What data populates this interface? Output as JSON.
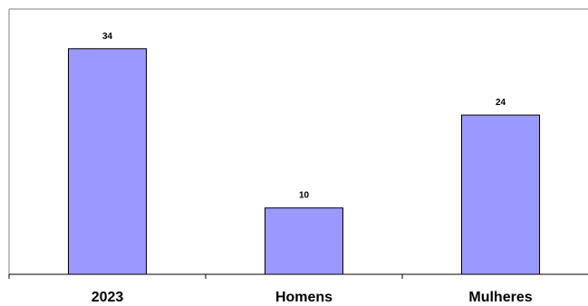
{
  "chart_data": {
    "type": "bar",
    "categories": [
      "2023",
      "Homens",
      "Mulheres"
    ],
    "values": [
      34,
      10,
      24
    ],
    "title": "",
    "xlabel": "",
    "ylabel": "",
    "ylim": [
      0,
      40
    ],
    "grid": false,
    "legend": "none",
    "bar_color": "#9999ff",
    "bar_edge_color": "#000000"
  }
}
